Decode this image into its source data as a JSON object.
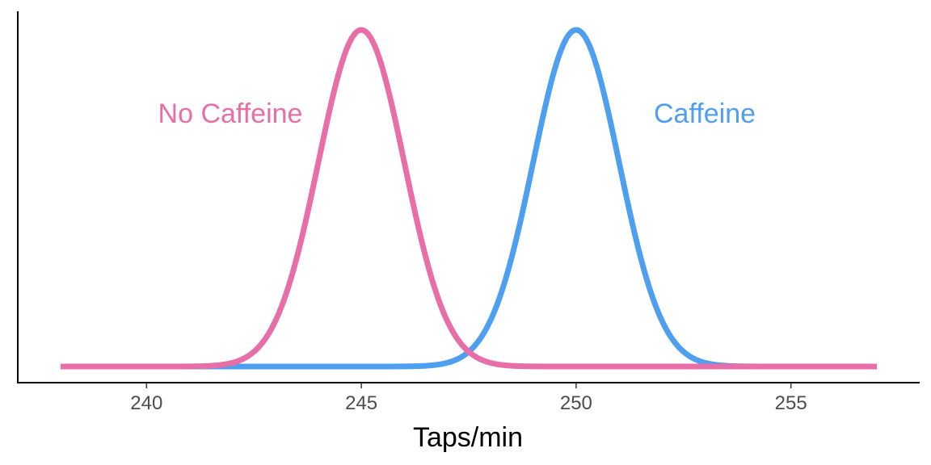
{
  "chart_data": {
    "type": "line",
    "title": "",
    "xlabel": "Taps/min",
    "ylabel": "",
    "xlim": [
      238,
      257
    ],
    "x_ticks": [
      240,
      245,
      250,
      255
    ],
    "grid": false,
    "legend": "none",
    "series": [
      {
        "name": "Caffeine",
        "color": "#4f9ff0",
        "distribution": "normal",
        "mean": 250,
        "sd": 1
      },
      {
        "name": "No Caffeine",
        "color": "#e86ea7",
        "distribution": "normal",
        "mean": 245,
        "sd": 1
      }
    ]
  }
}
